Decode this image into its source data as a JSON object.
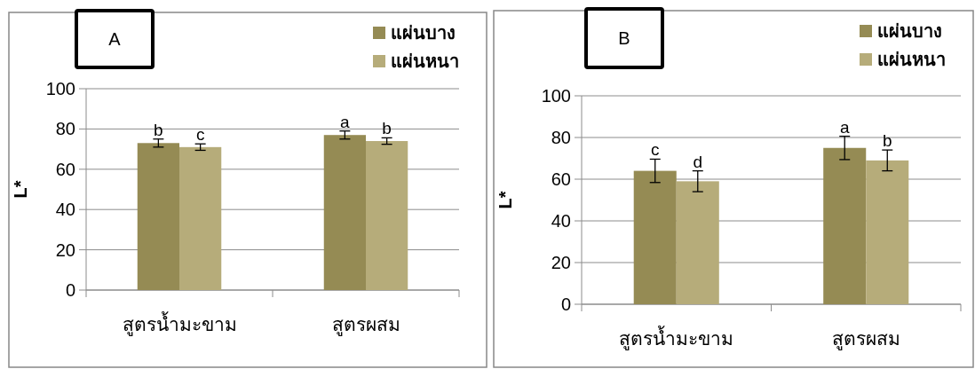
{
  "chart_data": [
    {
      "type": "bar",
      "title": "A",
      "ylabel": "L*",
      "categories": [
        "สูตรน้ำมะขาม",
        "สูตรผสม"
      ],
      "ylim": [
        0,
        100
      ],
      "yticks": [
        0,
        20,
        40,
        60,
        80,
        100
      ],
      "grid": "y",
      "legend": "top right",
      "series": [
        {
          "name": "แผ่นบาง",
          "color": "#958b54",
          "values": [
            73,
            77
          ],
          "errors": [
            2,
            2
          ],
          "value_labels": [
            "b",
            "a"
          ]
        },
        {
          "name": "แผ่นหนา",
          "color": "#b6ac7a",
          "values": [
            71,
            74
          ],
          "errors": [
            1.6,
            1.6
          ],
          "value_labels": [
            "c",
            "b"
          ]
        }
      ]
    },
    {
      "type": "bar",
      "title": "B",
      "ylabel": "L*",
      "categories": [
        "สูตรน้ำมะขาม",
        "สูตรผสม"
      ],
      "ylim": [
        0,
        100
      ],
      "yticks": [
        0,
        20,
        40,
        60,
        80,
        100
      ],
      "grid": "y",
      "legend": "top right",
      "series": [
        {
          "name": "แผ่นบาง",
          "color": "#958b54",
          "values": [
            64,
            75
          ],
          "errors": [
            5.6,
            5.6
          ],
          "value_labels": [
            "c",
            "a"
          ]
        },
        {
          "name": "แผ่นหนา",
          "color": "#b6ac7a",
          "values": [
            59,
            69
          ],
          "errors": [
            5,
            5
          ],
          "value_labels": [
            "d",
            "b"
          ]
        }
      ]
    }
  ]
}
